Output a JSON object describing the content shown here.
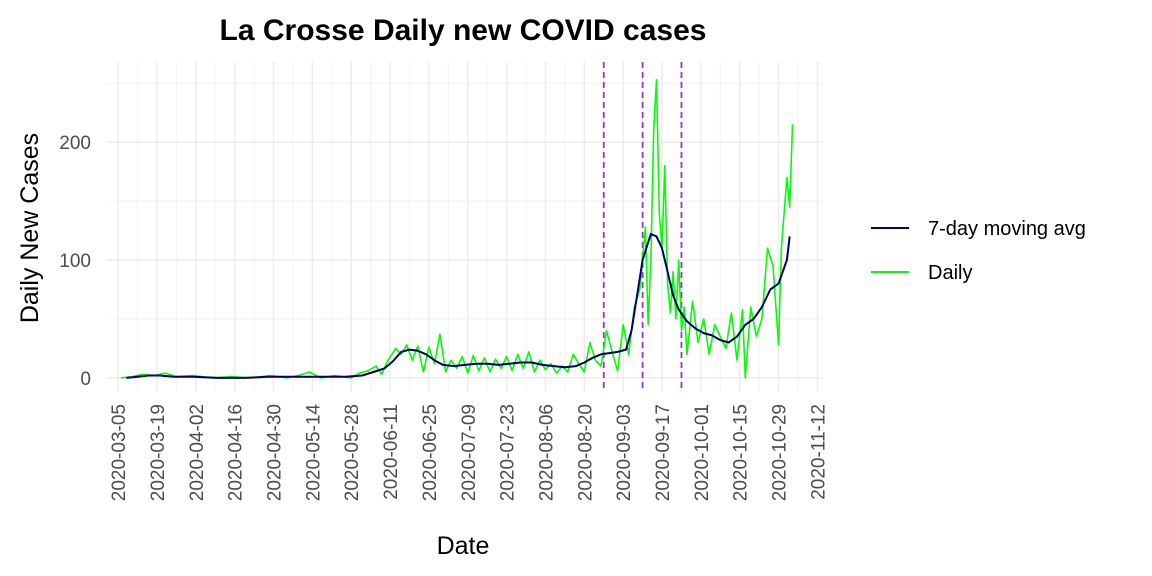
{
  "chart_data": {
    "type": "line",
    "title": "La Crosse Daily new COVID cases",
    "xlabel": "Date",
    "ylabel": "Daily New Cases",
    "x_axis": {
      "type": "date",
      "range": [
        "2020-03-01",
        "2020-11-14"
      ],
      "ticks": [
        "2020-03-05",
        "2020-03-19",
        "2020-04-02",
        "2020-04-16",
        "2020-04-30",
        "2020-05-14",
        "2020-05-28",
        "2020-06-11",
        "2020-06-25",
        "2020-07-09",
        "2020-07-23",
        "2020-08-06",
        "2020-08-20",
        "2020-09-03",
        "2020-09-17",
        "2020-10-01",
        "2020-10-15",
        "2020-10-29",
        "2020-11-12"
      ]
    },
    "y_axis": {
      "range": [
        -12,
        268
      ],
      "ticks": [
        0,
        100,
        200
      ]
    },
    "grid": true,
    "legend_position": "right",
    "series": [
      {
        "name": "7-day moving avg",
        "color": "#000066",
        "points": [
          [
            "2020-03-08",
            0
          ],
          [
            "2020-03-12",
            1
          ],
          [
            "2020-03-16",
            2
          ],
          [
            "2020-03-20",
            2
          ],
          [
            "2020-03-25",
            1
          ],
          [
            "2020-04-01",
            1
          ],
          [
            "2020-04-10",
            0
          ],
          [
            "2020-04-20",
            0
          ],
          [
            "2020-04-28",
            1
          ],
          [
            "2020-05-05",
            1
          ],
          [
            "2020-05-12",
            1
          ],
          [
            "2020-05-19",
            1
          ],
          [
            "2020-05-26",
            1
          ],
          [
            "2020-06-01",
            2
          ],
          [
            "2020-06-05",
            5
          ],
          [
            "2020-06-09",
            8
          ],
          [
            "2020-06-12",
            14
          ],
          [
            "2020-06-15",
            22
          ],
          [
            "2020-06-18",
            24
          ],
          [
            "2020-06-21",
            23
          ],
          [
            "2020-06-24",
            20
          ],
          [
            "2020-06-27",
            15
          ],
          [
            "2020-06-30",
            11
          ],
          [
            "2020-07-04",
            10
          ],
          [
            "2020-07-08",
            11
          ],
          [
            "2020-07-12",
            12
          ],
          [
            "2020-07-16",
            12
          ],
          [
            "2020-07-20",
            11
          ],
          [
            "2020-07-24",
            12
          ],
          [
            "2020-07-28",
            13
          ],
          [
            "2020-08-01",
            13
          ],
          [
            "2020-08-05",
            11
          ],
          [
            "2020-08-09",
            10
          ],
          [
            "2020-08-13",
            9
          ],
          [
            "2020-08-17",
            10
          ],
          [
            "2020-08-20",
            13
          ],
          [
            "2020-08-23",
            17
          ],
          [
            "2020-08-26",
            20
          ],
          [
            "2020-08-29",
            21
          ],
          [
            "2020-09-01",
            22
          ],
          [
            "2020-09-04",
            24
          ],
          [
            "2020-09-06",
            40
          ],
          [
            "2020-09-08",
            70
          ],
          [
            "2020-09-10",
            100
          ],
          [
            "2020-09-12",
            115
          ],
          [
            "2020-09-13",
            122
          ],
          [
            "2020-09-15",
            120
          ],
          [
            "2020-09-17",
            110
          ],
          [
            "2020-09-19",
            90
          ],
          [
            "2020-09-21",
            70
          ],
          [
            "2020-09-23",
            58
          ],
          [
            "2020-09-26",
            48
          ],
          [
            "2020-09-29",
            42
          ],
          [
            "2020-10-02",
            38
          ],
          [
            "2020-10-05",
            36
          ],
          [
            "2020-10-08",
            32
          ],
          [
            "2020-10-11",
            30
          ],
          [
            "2020-10-14",
            35
          ],
          [
            "2020-10-17",
            45
          ],
          [
            "2020-10-20",
            50
          ],
          [
            "2020-10-23",
            60
          ],
          [
            "2020-10-26",
            75
          ],
          [
            "2020-10-29",
            80
          ],
          [
            "2020-11-01",
            100
          ],
          [
            "2020-11-02",
            120
          ]
        ]
      },
      {
        "name": "Daily",
        "color": "#00ff00",
        "points": [
          [
            "2020-03-06",
            0
          ],
          [
            "2020-03-10",
            1
          ],
          [
            "2020-03-14",
            3
          ],
          [
            "2020-03-18",
            2
          ],
          [
            "2020-03-22",
            4
          ],
          [
            "2020-03-26",
            1
          ],
          [
            "2020-04-01",
            2
          ],
          [
            "2020-04-08",
            0
          ],
          [
            "2020-04-15",
            1
          ],
          [
            "2020-04-22",
            0
          ],
          [
            "2020-04-29",
            2
          ],
          [
            "2020-05-05",
            0
          ],
          [
            "2020-05-09",
            2
          ],
          [
            "2020-05-13",
            5
          ],
          [
            "2020-05-17",
            0
          ],
          [
            "2020-05-22",
            2
          ],
          [
            "2020-05-28",
            0
          ],
          [
            "2020-05-31",
            4
          ],
          [
            "2020-06-03",
            6
          ],
          [
            "2020-06-06",
            10
          ],
          [
            "2020-06-08",
            3
          ],
          [
            "2020-06-10",
            14
          ],
          [
            "2020-06-13",
            25
          ],
          [
            "2020-06-15",
            20
          ],
          [
            "2020-06-17",
            28
          ],
          [
            "2020-06-19",
            15
          ],
          [
            "2020-06-21",
            27
          ],
          [
            "2020-06-23",
            5
          ],
          [
            "2020-06-25",
            26
          ],
          [
            "2020-06-27",
            12
          ],
          [
            "2020-06-29",
            37
          ],
          [
            "2020-07-01",
            5
          ],
          [
            "2020-07-03",
            15
          ],
          [
            "2020-07-05",
            8
          ],
          [
            "2020-07-07",
            18
          ],
          [
            "2020-07-09",
            4
          ],
          [
            "2020-07-11",
            19
          ],
          [
            "2020-07-13",
            6
          ],
          [
            "2020-07-15",
            17
          ],
          [
            "2020-07-17",
            5
          ],
          [
            "2020-07-19",
            16
          ],
          [
            "2020-07-21",
            8
          ],
          [
            "2020-07-23",
            18
          ],
          [
            "2020-07-25",
            6
          ],
          [
            "2020-07-27",
            20
          ],
          [
            "2020-07-29",
            8
          ],
          [
            "2020-07-31",
            22
          ],
          [
            "2020-08-02",
            5
          ],
          [
            "2020-08-04",
            15
          ],
          [
            "2020-08-06",
            7
          ],
          [
            "2020-08-08",
            12
          ],
          [
            "2020-08-10",
            4
          ],
          [
            "2020-08-12",
            10
          ],
          [
            "2020-08-14",
            5
          ],
          [
            "2020-08-16",
            20
          ],
          [
            "2020-08-18",
            12
          ],
          [
            "2020-08-20",
            5
          ],
          [
            "2020-08-22",
            30
          ],
          [
            "2020-08-24",
            15
          ],
          [
            "2020-08-26",
            10
          ],
          [
            "2020-08-28",
            40
          ],
          [
            "2020-08-30",
            22
          ],
          [
            "2020-09-01",
            6
          ],
          [
            "2020-09-03",
            45
          ],
          [
            "2020-09-05",
            20
          ],
          [
            "2020-09-07",
            60
          ],
          [
            "2020-09-09",
            75
          ],
          [
            "2020-09-11",
            128
          ],
          [
            "2020-09-12",
            45
          ],
          [
            "2020-09-13",
            100
          ],
          [
            "2020-09-14",
            210
          ],
          [
            "2020-09-15",
            253
          ],
          [
            "2020-09-16",
            140
          ],
          [
            "2020-09-17",
            110
          ],
          [
            "2020-09-18",
            180
          ],
          [
            "2020-09-19",
            80
          ],
          [
            "2020-09-20",
            55
          ],
          [
            "2020-09-21",
            90
          ],
          [
            "2020-09-22",
            50
          ],
          [
            "2020-09-23",
            100
          ],
          [
            "2020-09-24",
            40
          ],
          [
            "2020-09-25",
            60
          ],
          [
            "2020-09-26",
            20
          ],
          [
            "2020-09-28",
            65
          ],
          [
            "2020-09-30",
            30
          ],
          [
            "2020-10-02",
            50
          ],
          [
            "2020-10-04",
            20
          ],
          [
            "2020-10-06",
            45
          ],
          [
            "2020-10-08",
            35
          ],
          [
            "2020-10-10",
            25
          ],
          [
            "2020-10-12",
            55
          ],
          [
            "2020-10-14",
            15
          ],
          [
            "2020-10-16",
            58
          ],
          [
            "2020-10-17",
            0
          ],
          [
            "2020-10-19",
            60
          ],
          [
            "2020-10-21",
            35
          ],
          [
            "2020-10-23",
            50
          ],
          [
            "2020-10-25",
            110
          ],
          [
            "2020-10-27",
            95
          ],
          [
            "2020-10-29",
            28
          ],
          [
            "2020-10-30",
            110
          ],
          [
            "2020-11-01",
            170
          ],
          [
            "2020-11-02",
            145
          ],
          [
            "2020-11-03",
            215
          ]
        ]
      }
    ],
    "reference_lines": {
      "color": "#9933cc",
      "style": "dashed",
      "x": [
        "2020-08-27",
        "2020-09-10",
        "2020-09-24"
      ]
    }
  }
}
